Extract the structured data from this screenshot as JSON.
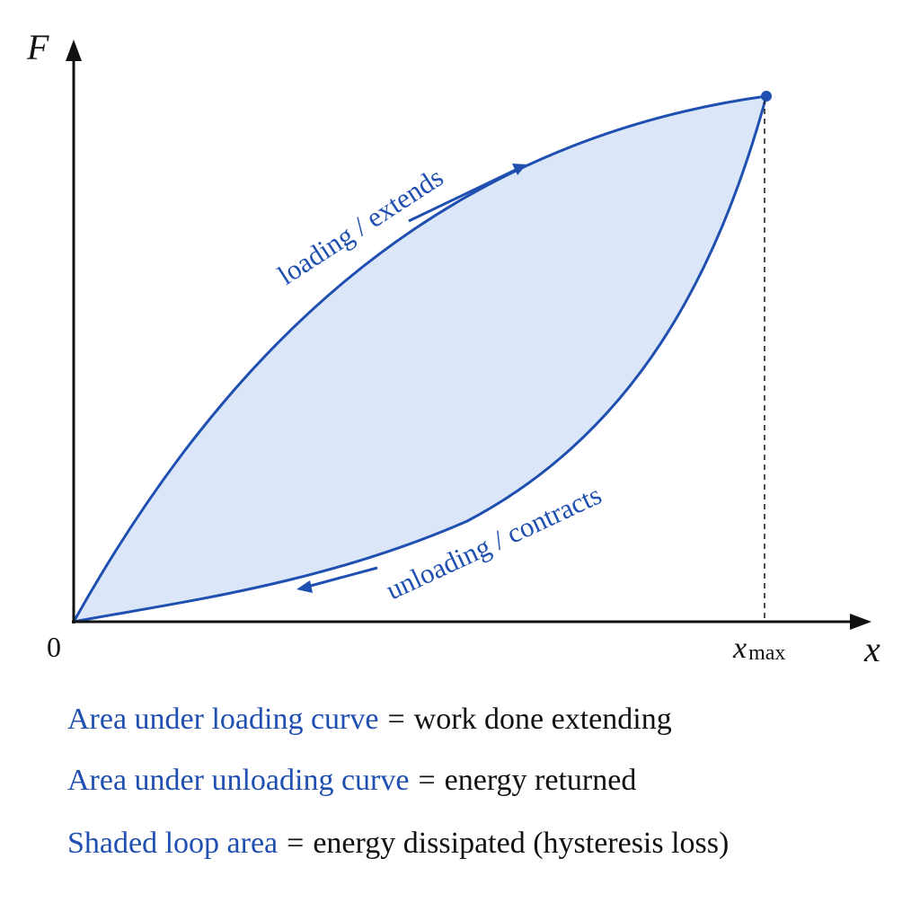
{
  "axes": {
    "y_label": "F",
    "x_label": "x",
    "origin_label": "0",
    "x_marker_main": "x",
    "x_marker_sub": "max"
  },
  "curves": {
    "loading_label": "loading / extends",
    "unloading_label": "unloading / contracts"
  },
  "captions": [
    {
      "term": "Area under loading curve",
      "eq": "=",
      "definition": "work done extending"
    },
    {
      "term": "Area under unloading curve",
      "eq": "=",
      "definition": "energy returned"
    },
    {
      "term": "Shaded loop area",
      "eq": "=",
      "definition": "energy dissipated (hysteresis loss)"
    }
  ],
  "colors": {
    "curve": "#1f4fb0",
    "loop_fill": "#dbe7f8",
    "axis": "#111111"
  }
}
